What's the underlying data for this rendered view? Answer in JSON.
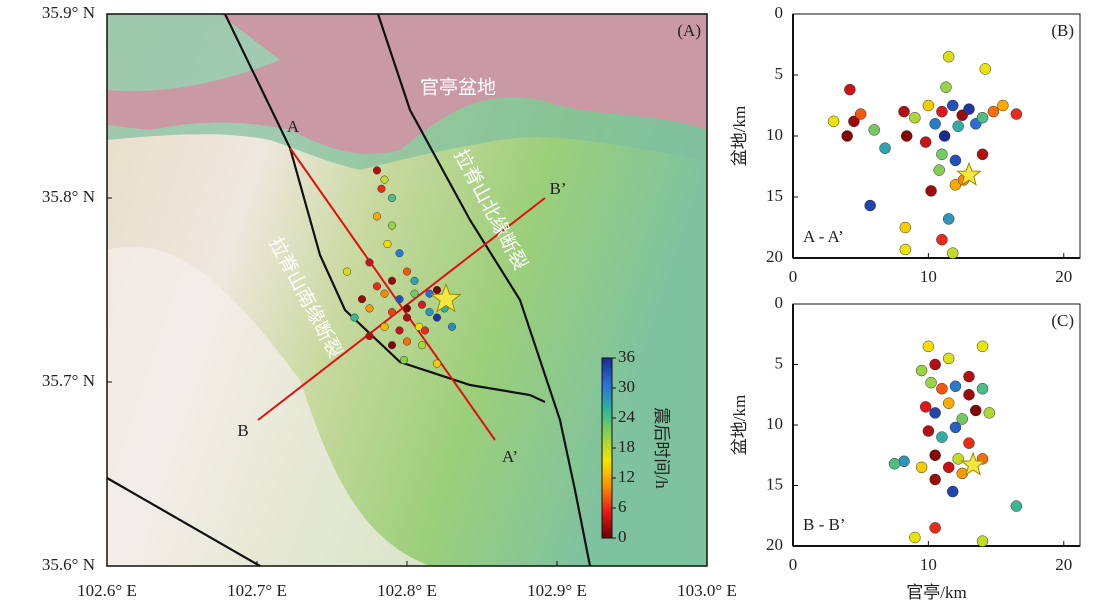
{
  "chart_data": [
    {
      "type": "map",
      "title": "(A)",
      "annotations": [
        "官亭盆地",
        "拉脊山北缘断裂",
        "拉脊山南缘断裂"
      ],
      "profile_labels": [
        "A",
        "A’",
        "B",
        "B’"
      ],
      "xlim": [
        102.6,
        103.0
      ],
      "ylim": [
        35.6,
        35.9
      ],
      "xticks": [
        {
          "value": 102.6,
          "label": "102.6° E"
        },
        {
          "value": 102.7,
          "label": "102.7° E"
        },
        {
          "value": 102.8,
          "label": "102.8° E"
        },
        {
          "value": 102.9,
          "label": "102.9° E"
        },
        {
          "value": 103.0,
          "label": "103.0° E"
        }
      ],
      "yticks": [
        {
          "value": 35.9,
          "label": "35.9° N"
        },
        {
          "value": 35.8,
          "label": "35.8° N"
        },
        {
          "value": 35.7,
          "label": "35.7° N"
        },
        {
          "value": 35.6,
          "label": "35.6° N"
        }
      ],
      "x": [
        102.78,
        102.785,
        102.783,
        102.79,
        102.78,
        102.79,
        102.787,
        102.775,
        102.795,
        102.8,
        102.79,
        102.78,
        102.785,
        102.795,
        102.8,
        102.805,
        102.81,
        102.815,
        102.8,
        102.79,
        102.775,
        102.77,
        102.808,
        102.82,
        102.825,
        102.795,
        102.8,
        102.81,
        102.79,
        102.785,
        102.815,
        102.805,
        102.82,
        102.812,
        102.798,
        102.82,
        102.76,
        102.765,
        102.83,
        102.775
      ],
      "y": [
        35.815,
        35.81,
        35.805,
        35.8,
        35.79,
        35.785,
        35.775,
        35.765,
        35.77,
        35.76,
        35.755,
        35.752,
        35.748,
        35.745,
        35.74,
        35.748,
        35.742,
        35.738,
        35.735,
        35.738,
        35.74,
        35.745,
        35.73,
        35.735,
        35.74,
        35.728,
        35.722,
        35.72,
        35.72,
        35.73,
        35.748,
        35.755,
        35.75,
        35.728,
        35.712,
        35.71,
        35.76,
        35.735,
        35.73,
        35.725
      ],
      "time": [
        3,
        18,
        6,
        24,
        12,
        20,
        15,
        4,
        30,
        8,
        2,
        6,
        10,
        33,
        1,
        22,
        5,
        28,
        3,
        7,
        11,
        2,
        16,
        35,
        26,
        4,
        9,
        19,
        1,
        13,
        31,
        27,
        0.5,
        6,
        21,
        14,
        17,
        25,
        29,
        3
      ],
      "mainshock": {
        "x": 102.826,
        "y": 35.745
      },
      "colorbar": {
        "label": "震后时间/h",
        "lim": [
          0,
          36
        ],
        "ticks": [
          0,
          6,
          12,
          18,
          24,
          30,
          36
        ],
        "colors": [
          "#6e0000",
          "#e3191c",
          "#ff8c00",
          "#f5e500",
          "#8ed14b",
          "#2fb3a0",
          "#2a6fd6",
          "#1b2a8f"
        ]
      }
    },
    {
      "type": "scatter",
      "title": "(B)",
      "profile": "A - A’",
      "ylabel": "盆地/km",
      "xlim": [
        0,
        21.2
      ],
      "ylim": [
        20,
        0
      ],
      "xticks": [
        0,
        10,
        20
      ],
      "yticks": [
        0,
        5,
        10,
        15,
        20
      ],
      "x": [
        4.2,
        4.5,
        3.0,
        4.0,
        5.0,
        6.0,
        6.8,
        8.2,
        8.4,
        9.0,
        10.0,
        10.5,
        11.0,
        11.3,
        11.5,
        11.8,
        12.2,
        12.5,
        13.0,
        13.5,
        14.0,
        14.8,
        15.5,
        16.5,
        11.0,
        12.0,
        14.0,
        12.0,
        10.2,
        10.8,
        11.5,
        8.3,
        8.3,
        11.0,
        11.8,
        5.7,
        14.2,
        12.6,
        9.8,
        11.2
      ],
      "y": [
        6.2,
        8.8,
        8.8,
        10.0,
        8.2,
        9.5,
        11.0,
        8.0,
        10.0,
        8.5,
        7.5,
        9.0,
        8.0,
        6.0,
        3.5,
        7.5,
        9.2,
        8.3,
        7.8,
        9.0,
        8.5,
        8.0,
        7.5,
        8.2,
        11.5,
        12.0,
        11.5,
        14.0,
        14.5,
        12.8,
        16.8,
        17.5,
        19.3,
        18.5,
        19.6,
        15.7,
        4.5,
        13.6,
        10.5,
        10.0
      ],
      "time": [
        4,
        2,
        16,
        1,
        8,
        22,
        27,
        3,
        1,
        19,
        14,
        30,
        5,
        20,
        17,
        33,
        26,
        2,
        35,
        31,
        24,
        9,
        12,
        6,
        22,
        33,
        3,
        12,
        2,
        21,
        28,
        14,
        16,
        6,
        18,
        34,
        16,
        10,
        4,
        36
      ],
      "mainshock": {
        "x": 13.0,
        "y": 13.2
      }
    },
    {
      "type": "scatter",
      "title": "(C)",
      "profile": "B - B’",
      "ylabel": "盆地/km",
      "xlabel": "官亭/km",
      "xlim": [
        0,
        21.2
      ],
      "ylim": [
        20,
        0
      ],
      "xticks": [
        0,
        10,
        20
      ],
      "yticks": [
        0,
        5,
        10,
        15,
        20
      ],
      "x": [
        10,
        10.5,
        11.5,
        14,
        10.2,
        11,
        12,
        13,
        14,
        9.8,
        10.5,
        11.5,
        12.5,
        13.5,
        14.5,
        10,
        11,
        12,
        13,
        10.5,
        11.5,
        12.2,
        14,
        10.5,
        9.5,
        8.2,
        7.5,
        11.8,
        16.5,
        10.5,
        9,
        14,
        12.5,
        13,
        9.5
      ],
      "y": [
        3.5,
        5,
        4.5,
        3.5,
        6.5,
        7,
        6.8,
        7.5,
        7,
        8.5,
        9,
        8.2,
        9.5,
        8.8,
        9,
        10.5,
        11,
        10.2,
        11.5,
        12.5,
        13.5,
        12.8,
        12.8,
        14.5,
        13.5,
        13,
        13.2,
        15.5,
        16.7,
        18.5,
        19.3,
        19.6,
        14,
        6,
        5.5
      ],
      "time": [
        15,
        3,
        17,
        16,
        20,
        8,
        30,
        2,
        24,
        5,
        34,
        12,
        22,
        1,
        19,
        3,
        26,
        32,
        6,
        1,
        4,
        18,
        9,
        2,
        14,
        28,
        24,
        34,
        25,
        6,
        16,
        18,
        11,
        3,
        20
      ],
      "mainshock": {
        "x": 13.3,
        "y": 13.3
      }
    }
  ]
}
